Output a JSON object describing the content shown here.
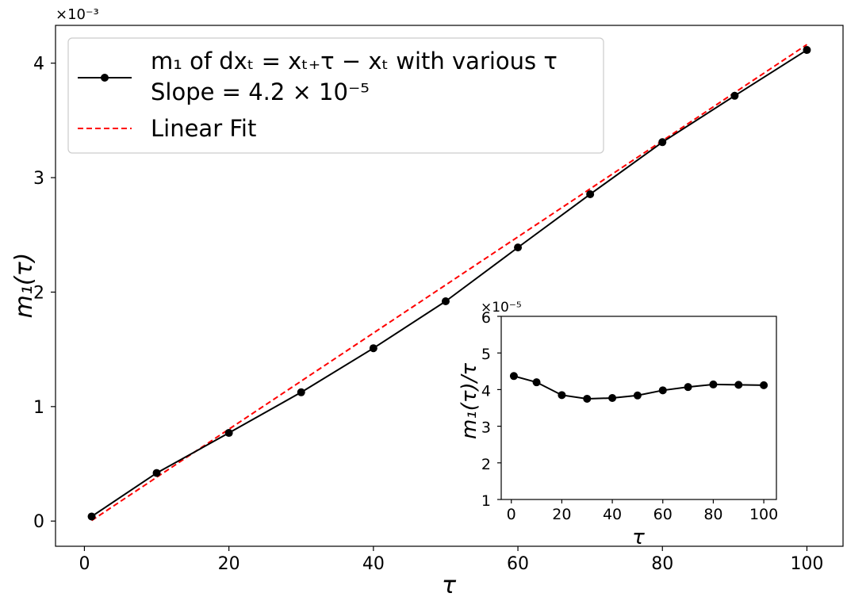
{
  "chart_data": [
    {
      "type": "line",
      "x": [
        1,
        10,
        20,
        30,
        40,
        50,
        60,
        70,
        80,
        90,
        100
      ],
      "series": [
        {
          "name": "m₁ of dxₜ = xₜ₊τ − xₜ with various τ",
          "name_line2": "Slope = 4.2 × 10⁻⁵",
          "color": "#000000",
          "style": "solid-with-markers",
          "values": [
            0.04,
            0.42,
            0.77,
            1.125,
            1.51,
            1.92,
            2.39,
            2.855,
            3.31,
            3.715,
            4.115
          ]
        },
        {
          "name": "Linear Fit",
          "color": "#ff0000",
          "style": "dashed",
          "fit": {
            "slope": 0.042,
            "intercept": -0.0375
          },
          "x_range": [
            1,
            100
          ]
        }
      ],
      "xlabel": "τ",
      "ylabel": "m₁(τ)",
      "y_multiplier": "×10⁻³",
      "xlim": [
        -4,
        105
      ],
      "ylim": [
        -0.22,
        4.33
      ],
      "xticks": [
        0,
        20,
        40,
        60,
        80,
        100
      ],
      "yticks": [
        0,
        1,
        2,
        3,
        4
      ],
      "legend": "top-left",
      "grid": false
    },
    {
      "type": "line",
      "role": "inset",
      "x": [
        1,
        10,
        20,
        30,
        40,
        50,
        60,
        70,
        80,
        90,
        100
      ],
      "series": [
        {
          "color": "#000000",
          "style": "solid-with-markers",
          "values": [
            4.37,
            4.2,
            3.85,
            3.75,
            3.77,
            3.84,
            3.98,
            4.07,
            4.14,
            4.13,
            4.12
          ]
        }
      ],
      "xlabel": "τ",
      "ylabel": "m₁(τ)/τ",
      "y_multiplier": "×10⁻⁵",
      "xlim": [
        -4,
        105
      ],
      "ylim": [
        1,
        6
      ],
      "xticks": [
        0,
        20,
        40,
        60,
        80,
        100
      ],
      "yticks": [
        1,
        2,
        3,
        4,
        5,
        6
      ],
      "grid": false
    }
  ]
}
